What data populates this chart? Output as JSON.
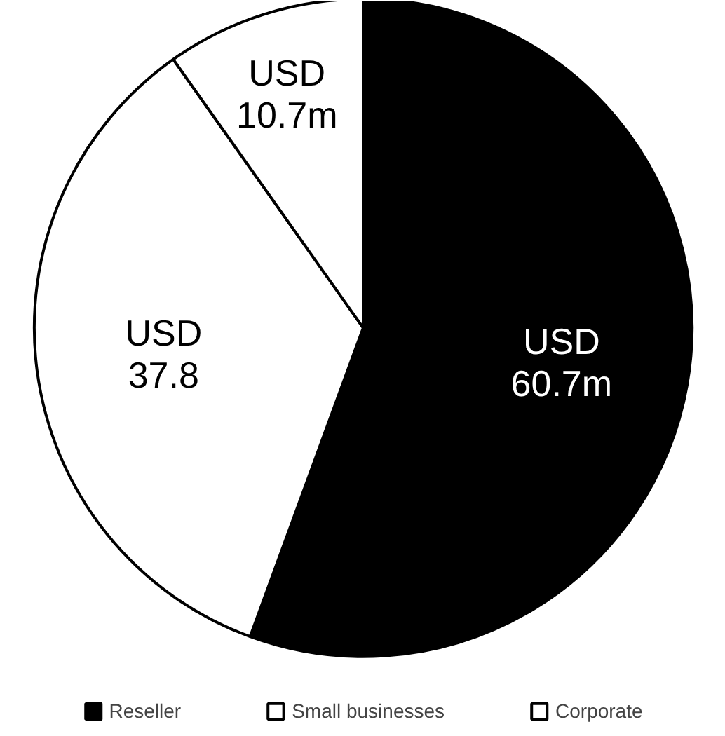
{
  "chart_data": {
    "type": "pie",
    "categories": [
      "Reseller",
      "Small businesses",
      "Corporate"
    ],
    "values": [
      60.7,
      37.8,
      10.7
    ],
    "colors": [
      "#000000",
      "#ffffff",
      "#ffffff"
    ],
    "value_labels": [
      "USD\n60.7m",
      "USD\n37.8",
      "USD\n10.7m"
    ],
    "legend": "bottom"
  }
}
